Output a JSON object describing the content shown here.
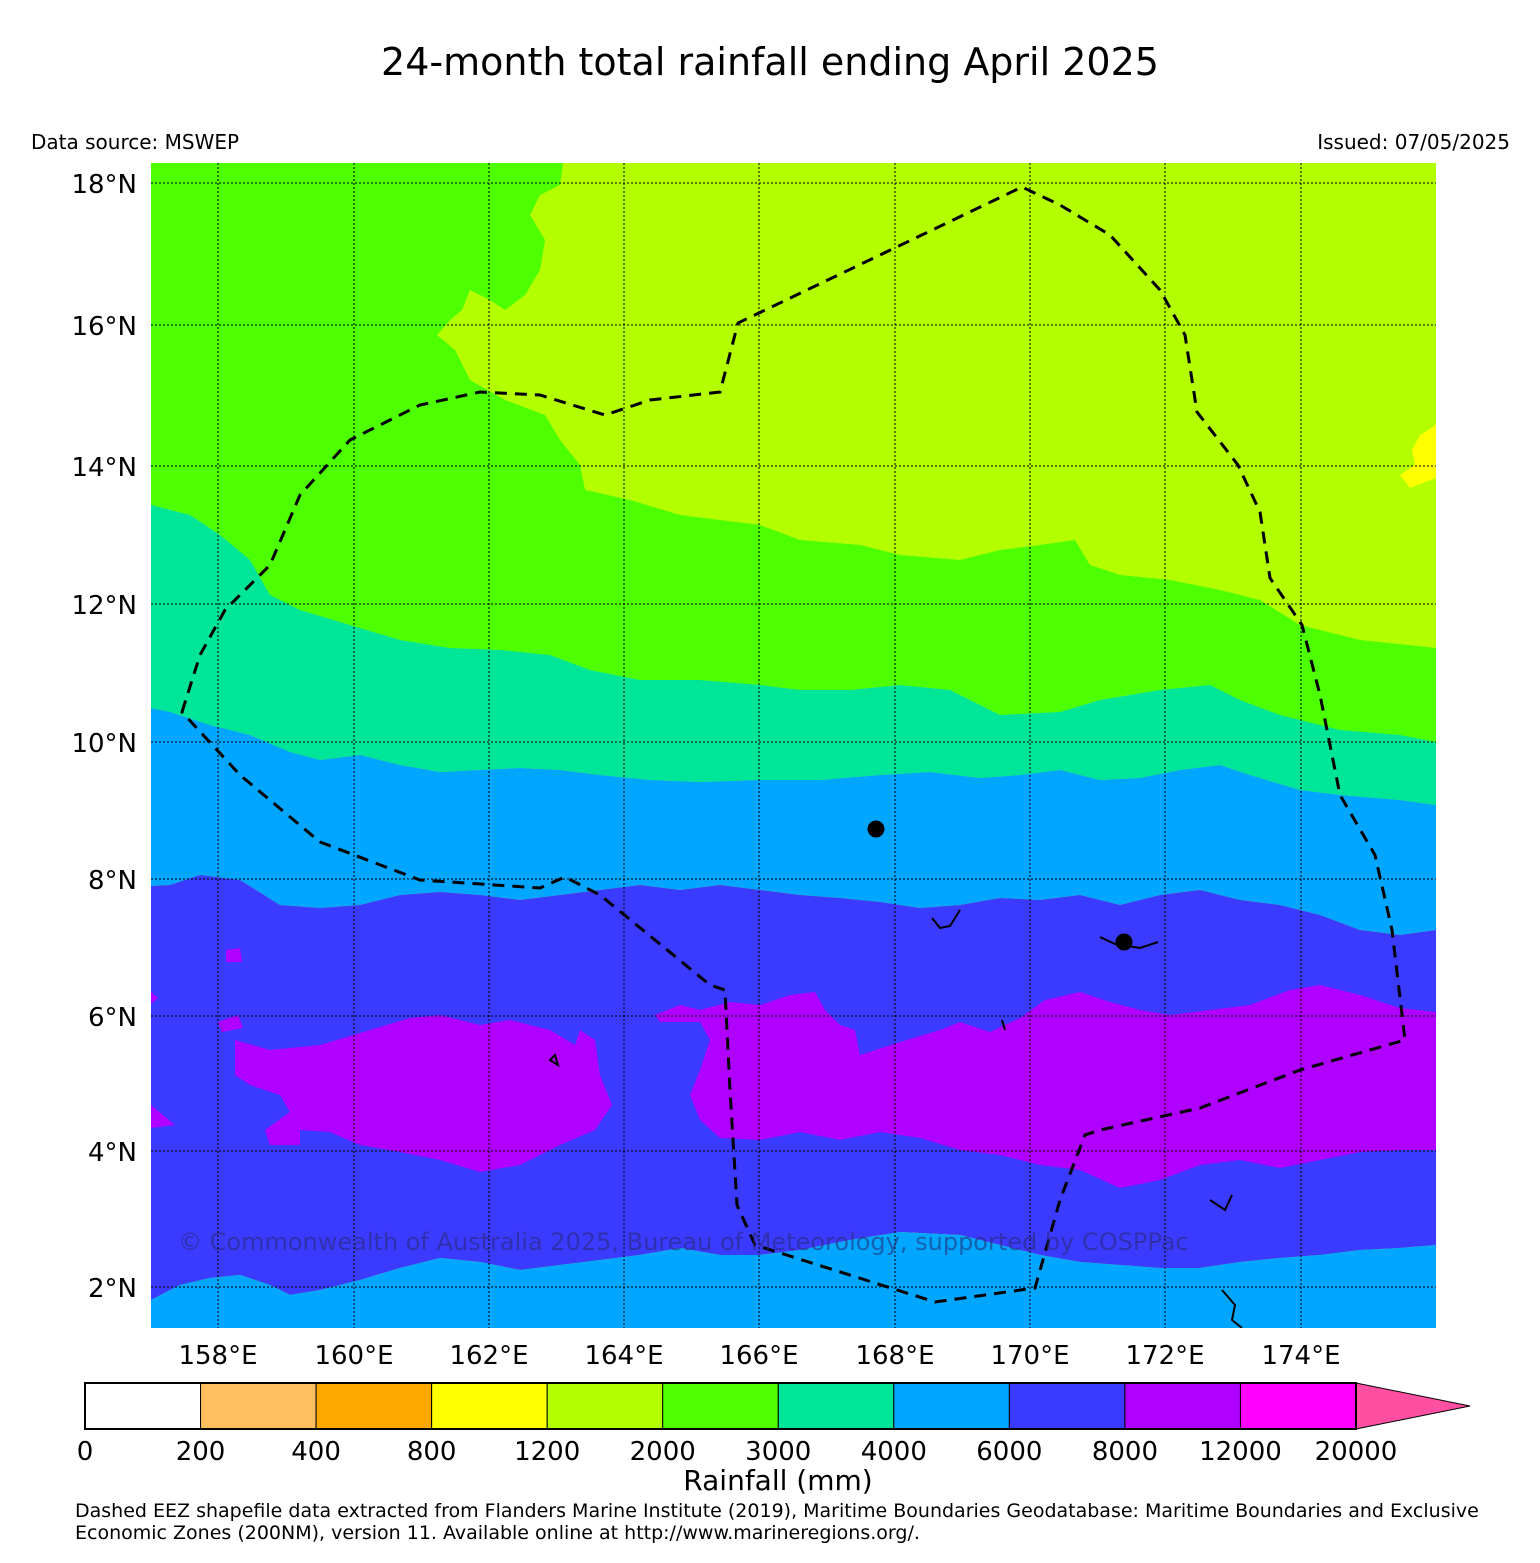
{
  "header": {
    "title": "24-month total rainfall ending April 2025",
    "data_source": "Data source: MSWEP",
    "issued": "Issued: 07/05/2025"
  },
  "map": {
    "lat_ticks": [
      "18°N",
      "16°N",
      "14°N",
      "12°N",
      "10°N",
      "8°N",
      "6°N",
      "4°N",
      "2°N"
    ],
    "lon_ticks": [
      "158°E",
      "160°E",
      "162°E",
      "164°E",
      "166°E",
      "168°E",
      "170°E",
      "172°E",
      "174°E"
    ],
    "lat_range": [
      1.4,
      18.3
    ],
    "lon_range": [
      157.0,
      176.0
    ],
    "grid": true,
    "eez_style": "dashed",
    "colors": {
      "c1200_2000": "#b3ff00",
      "c2000_3000": "#4dff00",
      "c3000_4000": "#00e699",
      "c4000_6000": "#00a6ff",
      "c6000_8000": "#3b3bff",
      "c8000_12000": "#b000ff",
      "c800_1200": "#ffff00"
    }
  },
  "colorbar": {
    "title": "Rainfall (mm)",
    "ticks": [
      "0",
      "200",
      "400",
      "800",
      "1200",
      "2000",
      "3000",
      "4000",
      "6000",
      "8000",
      "12000",
      "20000"
    ],
    "colors": [
      "#ffffff",
      "#ffbf5e",
      "#ffa800",
      "#ffff00",
      "#b3ff00",
      "#4dff00",
      "#00e699",
      "#00a6ff",
      "#3b3bff",
      "#b000ff",
      "#ff00ff"
    ],
    "extend_color": "#ff4fa3"
  },
  "copyright": "© Commonwealth of Australia 2025, Bureau of Meteorology, supported by COSPPac",
  "footnote": "Dashed EEZ shapefile data extracted from Flanders Marine Institute (2019), Maritime Boundaries Geodatabase: Maritime Boundaries and Exclusive Economic Zones (200NM), version 11. Available online at http://www.marineregions.org/."
}
